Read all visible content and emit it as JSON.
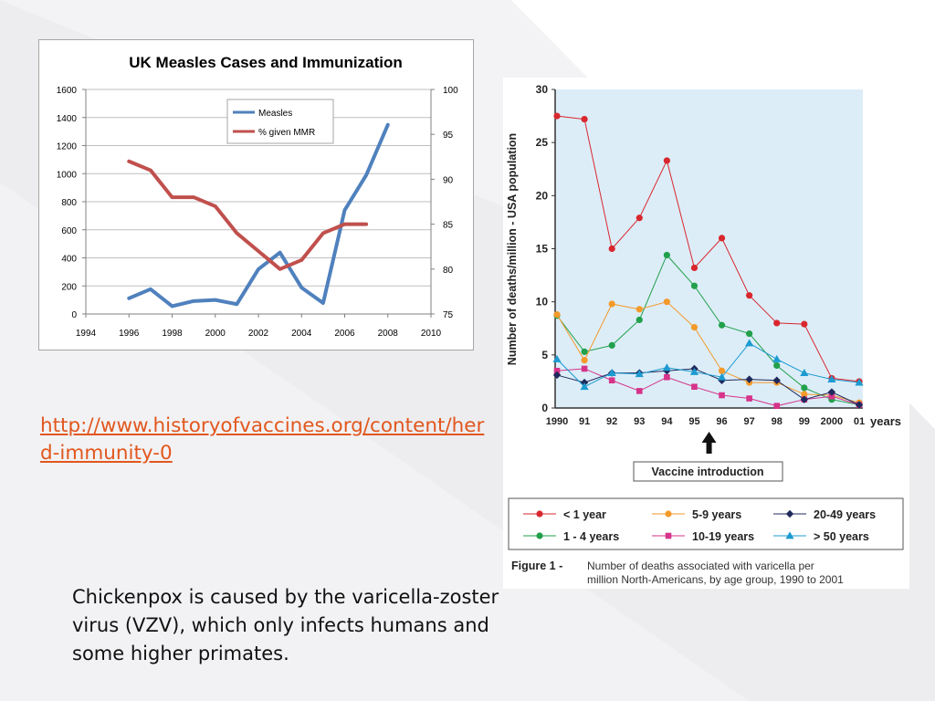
{
  "slide": {
    "link_text": "http://www.historyofvaccines.org/content/herd-immunity-0",
    "body_text": "Chickenpox is caused by the varicella-zoster virus (VZV), which only infects humans and some higher primates."
  },
  "chart_data": [
    {
      "type": "line",
      "title": "UK Measles Cases and Immunization",
      "x_ticks": [
        "1994",
        "1996",
        "1998",
        "2000",
        "2002",
        "2004",
        "2006",
        "2008",
        "2010"
      ],
      "xlim": [
        1994,
        2010
      ],
      "y_left_ticks": [
        "0",
        "200",
        "400",
        "600",
        "800",
        "1000",
        "1200",
        "1400",
        "1600"
      ],
      "ylim_left": [
        0,
        1600
      ],
      "y_right_ticks": [
        "75",
        "80",
        "85",
        "90",
        "95",
        "100"
      ],
      "ylim_right": [
        75,
        100
      ],
      "grid": true,
      "legend_position": "top-center",
      "series": [
        {
          "name": "Measles",
          "axis": "left",
          "color": "#4f81bd",
          "points": [
            [
              1996,
              112
            ],
            [
              1997,
              177
            ],
            [
              1998,
              56
            ],
            [
              1999,
              92
            ],
            [
              2000,
              100
            ],
            [
              2001,
              70
            ],
            [
              2002,
              319
            ],
            [
              2003,
              438
            ],
            [
              2004,
              188
            ],
            [
              2005,
              78
            ],
            [
              2006,
              740
            ],
            [
              2007,
              990
            ],
            [
              2008,
              1348
            ]
          ]
        },
        {
          "name": "% given MMR",
          "axis": "right",
          "color": "#c0504d",
          "points": [
            [
              1996,
              92
            ],
            [
              1997,
              91
            ],
            [
              1998,
              88
            ],
            [
              1999,
              88
            ],
            [
              2000,
              87
            ],
            [
              2001,
              84
            ],
            [
              2002,
              82
            ],
            [
              2003,
              80
            ],
            [
              2004,
              81
            ],
            [
              2005,
              84
            ],
            [
              2006,
              85
            ],
            [
              2007,
              85
            ]
          ]
        }
      ]
    },
    {
      "type": "line",
      "ylabel": "Number of deaths/million - USA population",
      "x_unit_label": "years",
      "categories": [
        "1990",
        "91",
        "92",
        "93",
        "94",
        "95",
        "96",
        "97",
        "98",
        "99",
        "2000",
        "01"
      ],
      "y_ticks": [
        "0",
        "5",
        "10",
        "15",
        "20",
        "25",
        "30"
      ],
      "ylim": [
        0,
        30
      ],
      "background": "#dcedf8",
      "annotation": {
        "label": "Vaccine introduction",
        "at_category": "96"
      },
      "legend_position": "bottom",
      "caption_label": "Figure 1 -",
      "caption_text": "Number of deaths associated with varicella per million North-Americans, by age group, 1990 to 2001",
      "series": [
        {
          "name": "< 1 year",
          "color": "#d9272e",
          "marker": "circle",
          "values": [
            27.5,
            27.2,
            15.0,
            17.9,
            23.3,
            13.2,
            16.0,
            10.6,
            8.0,
            7.9,
            2.8,
            2.5
          ]
        },
        {
          "name": "1 - 4 years",
          "color": "#22a04b",
          "marker": "circle",
          "values": [
            8.7,
            5.3,
            5.9,
            8.3,
            14.4,
            11.5,
            7.8,
            7.0,
            4.0,
            1.9,
            0.8,
            0.3
          ]
        },
        {
          "name": "5-9 years",
          "color": "#f39a2b",
          "marker": "circle",
          "values": [
            8.8,
            4.5,
            9.8,
            9.3,
            10.0,
            7.6,
            3.5,
            2.4,
            2.4,
            1.3,
            1.2,
            0.5
          ]
        },
        {
          "name": "10-19 years",
          "color": "#d6338a",
          "marker": "square",
          "values": [
            3.5,
            3.7,
            2.6,
            1.6,
            2.9,
            2.0,
            1.2,
            0.9,
            0.2,
            0.8,
            1.1,
            0.3
          ]
        },
        {
          "name": "20-49 years",
          "color": "#1f2a5c",
          "marker": "diamond",
          "values": [
            3.1,
            2.4,
            3.3,
            3.3,
            3.5,
            3.7,
            2.6,
            2.7,
            2.6,
            0.8,
            1.5,
            0.3
          ]
        },
        {
          "name": "> 50 years",
          "color": "#1d9bd1",
          "marker": "triangle",
          "values": [
            4.6,
            2.0,
            3.3,
            3.2,
            3.8,
            3.4,
            2.9,
            6.1,
            4.6,
            3.3,
            2.7,
            2.4
          ]
        }
      ]
    }
  ]
}
